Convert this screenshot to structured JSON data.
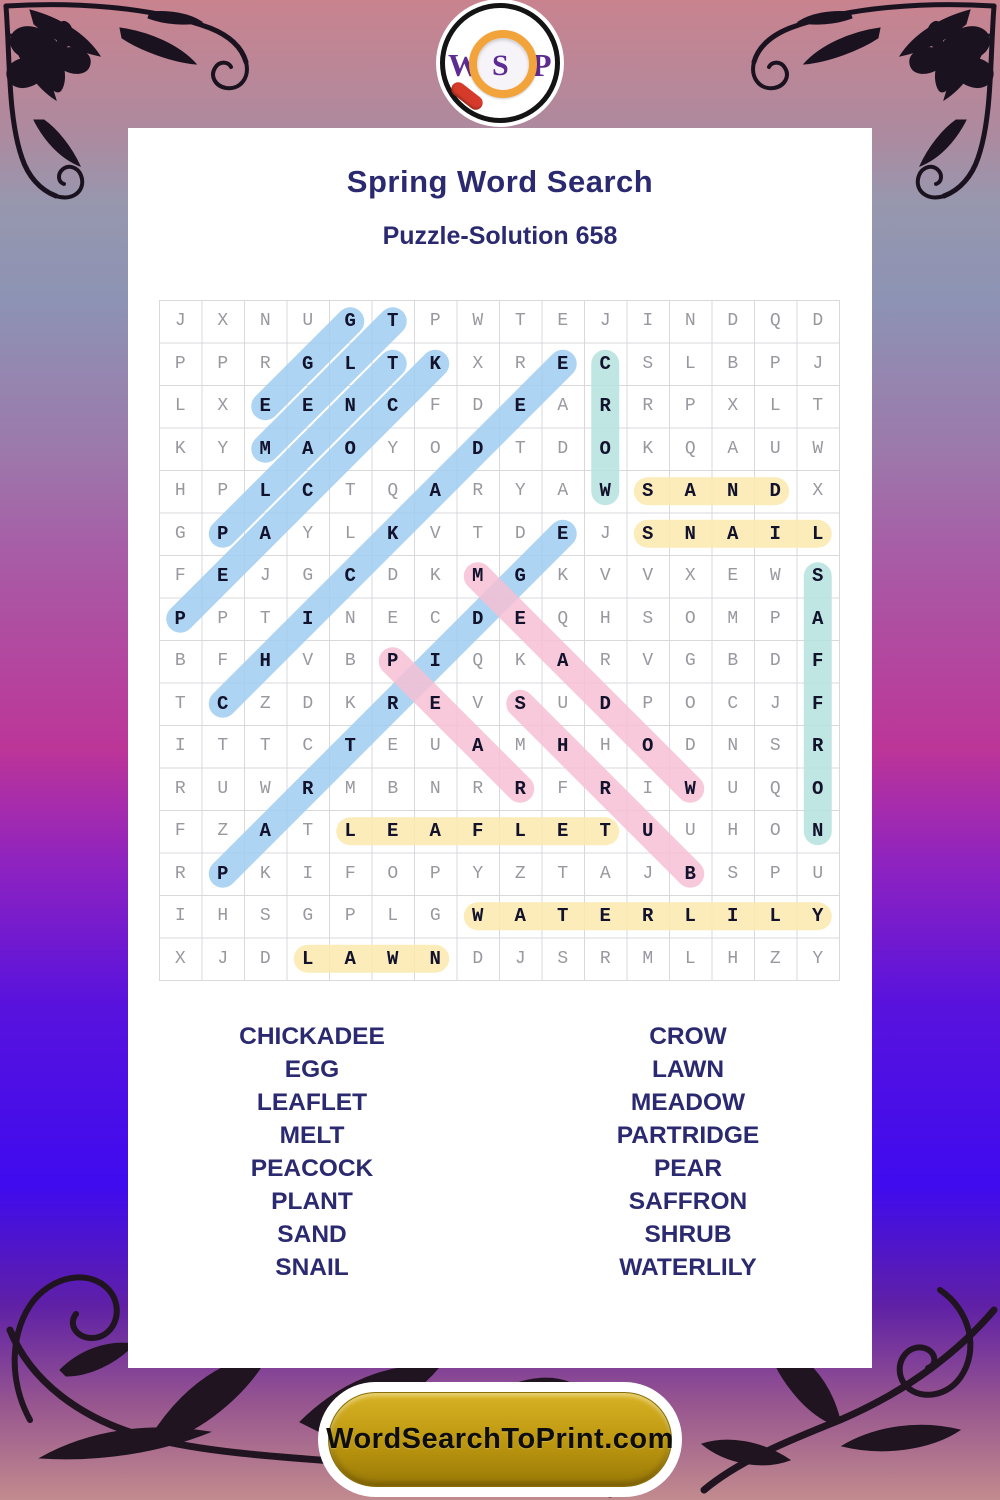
{
  "page": {
    "title": "Spring Word Search",
    "subtitle": "Puzzle-Solution 658"
  },
  "logo": {
    "letters": [
      "W",
      "S",
      "P"
    ],
    "letter_color": "#5d2b91",
    "lens_color": "#f2a43a",
    "handle_color": "#d63a2a"
  },
  "grid": {
    "size": 16,
    "rows": [
      "JXNUGTPWTEJINDQD",
      "PPRGLTKXRECSLBPJ",
      "LXEENCFDEARRPXLT",
      "KYMAOYODTDOKQAUW",
      "HPLCTQARYAWSANDX",
      "GPAYLKVTDEJSNAIL",
      "FEJGCDKMGKVVXEWS",
      "PPTINECDEQHSOMPA",
      "BFHVBPIQKARVGBDF",
      "TCZDKREVSUDPOCJF",
      "ITTCTEUAMHHODNSR",
      "RUWRMBNRRFRIWUQO",
      "FZATLEAFLETUUHON",
      "RPKIFOPYZTAJBSPU",
      "IHSGPLGWATERLILY",
      "XJDLAWNDJSRMLHZY"
    ],
    "highlight_colors": {
      "blue": "#9fcdf0",
      "teal": "#b5e2de",
      "yellow": "#fce9ad",
      "pink": "#f6bfd3"
    },
    "placements": [
      {
        "word": "EGG",
        "start": [
          2,
          2
        ],
        "end": [
          0,
          4
        ],
        "color": "blue"
      },
      {
        "word": "MELT",
        "start": [
          3,
          2
        ],
        "end": [
          0,
          5
        ],
        "color": "blue"
      },
      {
        "word": "PLANT",
        "start": [
          5,
          1
        ],
        "end": [
          1,
          5
        ],
        "color": "blue"
      },
      {
        "word": "PEACOCK",
        "start": [
          7,
          0
        ],
        "end": [
          1,
          6
        ],
        "color": "blue"
      },
      {
        "word": "CHICKADEE",
        "start": [
          9,
          1
        ],
        "end": [
          1,
          9
        ],
        "color": "blue"
      },
      {
        "word": "PARTRIDGE",
        "start": [
          13,
          1
        ],
        "end": [
          5,
          9
        ],
        "color": "blue"
      },
      {
        "word": "CROW",
        "start": [
          1,
          10
        ],
        "end": [
          4,
          10
        ],
        "color": "teal"
      },
      {
        "word": "SAFFRON",
        "start": [
          6,
          15
        ],
        "end": [
          12,
          15
        ],
        "color": "teal"
      },
      {
        "word": "SAND",
        "start": [
          4,
          11
        ],
        "end": [
          4,
          14
        ],
        "color": "yellow"
      },
      {
        "word": "SNAIL",
        "start": [
          5,
          11
        ],
        "end": [
          5,
          15
        ],
        "color": "yellow"
      },
      {
        "word": "LEAFLET",
        "start": [
          12,
          4
        ],
        "end": [
          12,
          10
        ],
        "color": "yellow"
      },
      {
        "word": "WATERLILY",
        "start": [
          14,
          7
        ],
        "end": [
          14,
          15
        ],
        "color": "yellow"
      },
      {
        "word": "LAWN",
        "start": [
          15,
          3
        ],
        "end": [
          15,
          6
        ],
        "color": "yellow"
      },
      {
        "word": "MEADOW",
        "start": [
          6,
          7
        ],
        "end": [
          11,
          12
        ],
        "color": "pink"
      },
      {
        "word": "PEAR",
        "start": [
          8,
          5
        ],
        "end": [
          11,
          8
        ],
        "color": "pink"
      },
      {
        "word": "SHRUB",
        "start": [
          9,
          8
        ],
        "end": [
          13,
          12
        ],
        "color": "pink"
      }
    ]
  },
  "word_list": {
    "left": [
      "CHICKADEE",
      "EGG",
      "LEAFLET",
      "MELT",
      "PEACOCK",
      "PLANT",
      "SAND",
      "SNAIL"
    ],
    "right": [
      "CROW",
      "LAWN",
      "MEADOW",
      "PARTRIDGE",
      "PEAR",
      "SAFFRON",
      "SHRUB",
      "WATERLILY"
    ]
  },
  "footer": {
    "site_label": "WordSearchToPrint.com"
  },
  "colors": {
    "heading_navy": "#2b2a70",
    "filler_letter": "#98989f",
    "solution_letter": "#12122c",
    "gold_button": "#bb960f",
    "card_background": "#ffffff"
  }
}
